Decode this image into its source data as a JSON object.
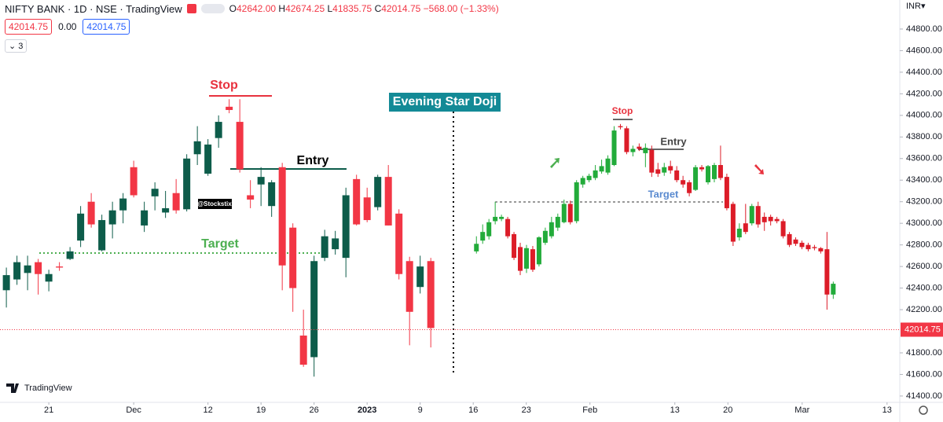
{
  "header": {
    "symbol": "NIFTY BANK · 1D · NSE · TradingView",
    "ohlc": [
      {
        "label": "O",
        "value": "42642.00"
      },
      {
        "label": "H",
        "value": "42674.25"
      },
      {
        "label": "L",
        "value": "41835.75"
      },
      {
        "label": "C",
        "value": "42014.75"
      }
    ],
    "change": "−568.00 (−1.33%)",
    "sell": "42014.75",
    "spread": "0.00",
    "buy": "42014.75",
    "indicators": "3"
  },
  "chart_data": {
    "type": "candlestick",
    "currency": "INR▾",
    "watermark": "TradingView",
    "annotations": [
      "Stop",
      "Entry",
      "Target",
      "Evening Star Doji",
      "@Stockstix",
      "Stop",
      "Entry",
      "Target"
    ],
    "xlim": [
      -4.6,
      80.2
    ],
    "ylim": [
      41283,
      45069
    ],
    "grid": false,
    "last_price": 42014.75,
    "xticks": [
      {
        "value": 0,
        "label": "21"
      },
      {
        "value": 8,
        "label": "Dec"
      },
      {
        "value": 15,
        "label": "12"
      },
      {
        "value": 20,
        "label": "19"
      },
      {
        "value": 25,
        "label": "26"
      },
      {
        "value": 30,
        "label": "2023"
      },
      {
        "value": 35,
        "label": "9"
      },
      {
        "value": 40,
        "label": "16"
      },
      {
        "value": 45,
        "label": "23"
      },
      {
        "value": 51,
        "label": "Feb"
      },
      {
        "value": 59,
        "label": "13"
      },
      {
        "value": 64,
        "label": "20"
      },
      {
        "value": 71,
        "label": "Mar"
      },
      {
        "value": 79,
        "label": "13"
      }
    ],
    "yticks": [
      {
        "value": 41400,
        "label": "41400.00"
      },
      {
        "value": 41600,
        "label": "41600.00"
      },
      {
        "value": 41800,
        "label": "41800.00"
      },
      {
        "value": 42200,
        "label": "42200.00"
      },
      {
        "value": 42400,
        "label": "42400.00"
      },
      {
        "value": 42600,
        "label": "42600.00"
      },
      {
        "value": 42800,
        "label": "42800.00"
      },
      {
        "value": 43000,
        "label": "43000.00"
      },
      {
        "value": 43200,
        "label": "43200.00"
      },
      {
        "value": 43400,
        "label": "43400.00"
      },
      {
        "value": 43600,
        "label": "43600.00"
      },
      {
        "value": 43800,
        "label": "43800.00"
      },
      {
        "value": 44000,
        "label": "44000.00"
      },
      {
        "value": 44200,
        "label": "44200.00"
      },
      {
        "value": 44400,
        "label": "44400.00"
      },
      {
        "value": 44600,
        "label": "44600.00"
      },
      {
        "value": 44800,
        "label": "44800.00"
      }
    ],
    "series": [
      {
        "up_color": "#0d5c4a",
        "down_color": "#f23645",
        "x": [
          -4,
          -3,
          -2,
          -1,
          0,
          1,
          2,
          3,
          4,
          5,
          6,
          7,
          8,
          9,
          10,
          11,
          12,
          13,
          14,
          15,
          16,
          17,
          18,
          19,
          20,
          21,
          22,
          23,
          24,
          25,
          26,
          27,
          28,
          29,
          30,
          31,
          32,
          33,
          34,
          35,
          36
        ],
        "open": [
          42380,
          42480,
          42540,
          42640,
          42460,
          42600,
          42670,
          42840,
          43200,
          42750,
          42990,
          43120,
          43520,
          42980,
          43250,
          43100,
          43280,
          43130,
          43640,
          43460,
          43790,
          44080,
          43940,
          43260,
          43360,
          43160,
          43520,
          42960,
          41960,
          41760,
          42680,
          42760,
          42680,
          43410,
          43240,
          43150,
          43430,
          43090,
          42650,
          42410,
          42650
        ],
        "high": [
          42590,
          42700,
          42700,
          42670,
          42570,
          42640,
          42780,
          43160,
          43280,
          43080,
          43200,
          43280,
          43580,
          43200,
          43380,
          43300,
          43410,
          43640,
          43900,
          43780,
          44000,
          44150,
          44150,
          43400,
          43520,
          43400,
          43560,
          43000,
          42200,
          42700,
          42940,
          42930,
          43330,
          43450,
          43330,
          43450,
          43540,
          43130,
          42690,
          42700,
          42680
        ],
        "low": [
          42220,
          42430,
          42380,
          42340,
          42370,
          42560,
          42660,
          42780,
          42960,
          42740,
          42860,
          43000,
          43240,
          42920,
          43120,
          43050,
          43090,
          43110,
          43540,
          43440,
          43700,
          44020,
          43470,
          43140,
          43160,
          43060,
          42380,
          42180,
          41670,
          41580,
          42650,
          42710,
          42500,
          42980,
          43010,
          43120,
          42980,
          42480,
          41870,
          42350,
          41850
        ],
        "close": [
          42520,
          42640,
          42610,
          42530,
          42530,
          42590,
          42740,
          43090,
          42990,
          43030,
          43120,
          43230,
          43260,
          43120,
          43320,
          43140,
          43120,
          43600,
          43760,
          43730,
          43940,
          44050,
          43500,
          43220,
          43430,
          43380,
          42610,
          42400,
          41690,
          42650,
          42880,
          42860,
          43260,
          42990,
          43030,
          43430,
          42980,
          42530,
          42180,
          42600,
          42030
        ]
      },
      {
        "up_color": "#22ab3a",
        "down_color": "#dc1c28",
        "x": [
          40.3,
          40.89,
          41.48,
          42.07,
          42.66,
          43.25,
          43.84,
          44.43,
          45.02,
          45.61,
          46.2,
          46.79,
          47.38,
          47.97,
          48.56,
          49.15,
          49.74,
          50.33,
          50.92,
          51.51,
          52.1,
          52.69,
          53.28,
          53.87,
          54.46,
          55.05,
          55.64,
          56.23,
          56.82,
          57.41,
          58.0,
          58.59,
          59.18,
          59.77,
          60.36,
          60.95,
          61.54,
          62.13,
          62.72,
          63.31,
          63.9,
          64.49,
          65.08,
          65.67,
          66.26,
          66.85,
          67.44,
          68.03,
          68.62,
          69.21,
          69.8,
          70.39,
          70.98,
          71.57,
          72.16,
          72.75,
          73.34,
          73.93
        ],
        "open": [
          42740,
          42840,
          42880,
          43020,
          43040,
          43040,
          42900,
          42780,
          42580,
          42760,
          42620,
          42820,
          42880,
          42960,
          43010,
          43180,
          43020,
          43360,
          43400,
          43420,
          43480,
          43470,
          43540,
          43900,
          43880,
          43660,
          43710,
          43650,
          43680,
          43500,
          43470,
          43530,
          43490,
          43400,
          43380,
          43310,
          43520,
          43380,
          43410,
          43540,
          43430,
          43180,
          42870,
          43000,
          43000,
          43160,
          43060,
          43060,
          43040,
          43020,
          42900,
          42850,
          42820,
          42800,
          42780,
          42770,
          42760,
          42340
        ],
        "high": [
          42880,
          42990,
          43040,
          43200,
          43080,
          43060,
          42920,
          42820,
          42800,
          42790,
          42880,
          42960,
          43060,
          43090,
          43220,
          43210,
          43400,
          43440,
          43460,
          43540,
          43590,
          43630,
          43900,
          43920,
          43900,
          43720,
          43740,
          43740,
          43720,
          43560,
          43560,
          43580,
          43530,
          43440,
          43400,
          43540,
          43540,
          43540,
          43560,
          43720,
          43460,
          43200,
          43000,
          43180,
          43180,
          43200,
          43100,
          43080,
          43060,
          43040,
          42920,
          42870,
          42840,
          42820,
          42800,
          42780,
          42920,
          42460
        ],
        "low": [
          42720,
          42810,
          42850,
          42990,
          43020,
          42860,
          42660,
          42520,
          42540,
          42550,
          42600,
          42800,
          42860,
          42930,
          43000,
          42990,
          43000,
          43330,
          43380,
          43400,
          43460,
          43450,
          43530,
          43870,
          43640,
          43620,
          43670,
          43520,
          43430,
          43430,
          43440,
          43460,
          43380,
          43330,
          43250,
          43300,
          43480,
          43360,
          43380,
          43400,
          43120,
          42790,
          42840,
          42900,
          42980,
          42960,
          42930,
          42980,
          43000,
          42860,
          42780,
          42790,
          42760,
          42740,
          42750,
          42720,
          42200,
          42300
        ],
        "close": [
          42810,
          42920,
          43010,
          43060,
          43060,
          42880,
          42680,
          42560,
          42770,
          42570,
          42870,
          42930,
          43010,
          43060,
          43180,
          43010,
          43380,
          43420,
          43440,
          43490,
          43530,
          43600,
          43860,
          43890,
          43660,
          43690,
          43690,
          43700,
          43470,
          43460,
          43520,
          43490,
          43400,
          43360,
          43280,
          43520,
          43500,
          43530,
          43540,
          43420,
          43140,
          42830,
          42950,
          42920,
          43160,
          42990,
          43010,
          43020,
          43020,
          42880,
          42800,
          42810,
          42780,
          42760,
          42770,
          42740,
          42340,
          42440
        ]
      }
    ]
  }
}
